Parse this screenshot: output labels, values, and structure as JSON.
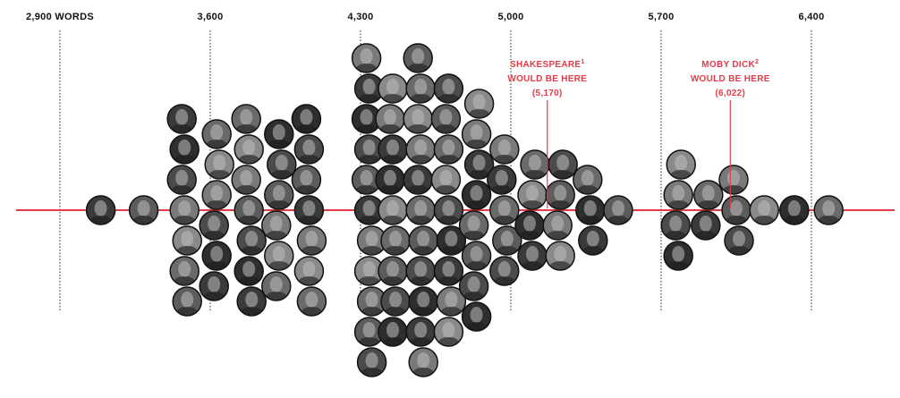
{
  "chart_data": {
    "type": "scatter",
    "title": "",
    "xlabel": "",
    "ylabel": "",
    "x_unit": "WORDS",
    "xlim": [
      2900,
      6600
    ],
    "grid": true,
    "ticks": [
      {
        "value": 2900,
        "label": "2,900 WORDS"
      },
      {
        "value": 3600,
        "label": "3,600"
      },
      {
        "value": 4300,
        "label": "4,300"
      },
      {
        "value": 5000,
        "label": "5,000"
      },
      {
        "value": 5700,
        "label": "5,700"
      },
      {
        "value": 6400,
        "label": "6,400"
      }
    ],
    "colors": {
      "accent": "#e23b4a",
      "point_fill": "#5a5a5a",
      "point_stroke": "#111111",
      "gridline": "#222222"
    },
    "points": [
      {
        "x": 3090
      },
      {
        "x": 3290
      },
      {
        "x": 3480
      },
      {
        "x": 3480
      },
      {
        "x": 3480
      },
      {
        "x": 3480
      },
      {
        "x": 3480
      },
      {
        "x": 3480
      },
      {
        "x": 3480
      },
      {
        "x": 3630
      },
      {
        "x": 3630
      },
      {
        "x": 3630
      },
      {
        "x": 3630
      },
      {
        "x": 3630
      },
      {
        "x": 3630
      },
      {
        "x": 3780
      },
      {
        "x": 3780
      },
      {
        "x": 3780
      },
      {
        "x": 3780
      },
      {
        "x": 3780
      },
      {
        "x": 3780
      },
      {
        "x": 3780
      },
      {
        "x": 3920
      },
      {
        "x": 3920
      },
      {
        "x": 3920
      },
      {
        "x": 3920
      },
      {
        "x": 3920
      },
      {
        "x": 3920
      },
      {
        "x": 4060
      },
      {
        "x": 4060
      },
      {
        "x": 4060
      },
      {
        "x": 4060
      },
      {
        "x": 4060
      },
      {
        "x": 4060
      },
      {
        "x": 4060
      },
      {
        "x": 4340
      },
      {
        "x": 4340
      },
      {
        "x": 4340
      },
      {
        "x": 4340
      },
      {
        "x": 4340
      },
      {
        "x": 4340
      },
      {
        "x": 4340
      },
      {
        "x": 4340
      },
      {
        "x": 4340
      },
      {
        "x": 4340
      },
      {
        "x": 4340
      },
      {
        "x": 4450
      },
      {
        "x": 4450
      },
      {
        "x": 4450
      },
      {
        "x": 4450
      },
      {
        "x": 4450
      },
      {
        "x": 4450
      },
      {
        "x": 4450
      },
      {
        "x": 4450
      },
      {
        "x": 4450
      },
      {
        "x": 4580
      },
      {
        "x": 4580
      },
      {
        "x": 4580
      },
      {
        "x": 4580
      },
      {
        "x": 4580
      },
      {
        "x": 4580
      },
      {
        "x": 4580
      },
      {
        "x": 4580
      },
      {
        "x": 4580
      },
      {
        "x": 4580
      },
      {
        "x": 4580
      },
      {
        "x": 4710
      },
      {
        "x": 4710
      },
      {
        "x": 4710
      },
      {
        "x": 4710
      },
      {
        "x": 4710
      },
      {
        "x": 4710
      },
      {
        "x": 4710
      },
      {
        "x": 4710
      },
      {
        "x": 4710
      },
      {
        "x": 4840
      },
      {
        "x": 4840
      },
      {
        "x": 4840
      },
      {
        "x": 4840
      },
      {
        "x": 4840
      },
      {
        "x": 4840
      },
      {
        "x": 4840
      },
      {
        "x": 4840
      },
      {
        "x": 4970
      },
      {
        "x": 4970
      },
      {
        "x": 4970
      },
      {
        "x": 4970
      },
      {
        "x": 4970
      },
      {
        "x": 5100
      },
      {
        "x": 5100
      },
      {
        "x": 5100
      },
      {
        "x": 5100
      },
      {
        "x": 5230
      },
      {
        "x": 5230
      },
      {
        "x": 5230
      },
      {
        "x": 5230
      },
      {
        "x": 5370
      },
      {
        "x": 5370
      },
      {
        "x": 5370
      },
      {
        "x": 5500
      },
      {
        "x": 5780
      },
      {
        "x": 5780
      },
      {
        "x": 5780
      },
      {
        "x": 5780
      },
      {
        "x": 5920
      },
      {
        "x": 5920
      },
      {
        "x": 6050
      },
      {
        "x": 6050
      },
      {
        "x": 6050
      },
      {
        "x": 6180
      },
      {
        "x": 6320
      },
      {
        "x": 6480
      }
    ],
    "annotations": [
      {
        "x": 5170,
        "lines": [
          "SHAKESPEARE",
          "WOULD BE HERE",
          "(5,170)"
        ],
        "footnote": "1"
      },
      {
        "x": 6022,
        "lines": [
          "MOBY DICK",
          "WOULD BE HERE",
          "(6,022)"
        ],
        "footnote": "2"
      }
    ]
  }
}
